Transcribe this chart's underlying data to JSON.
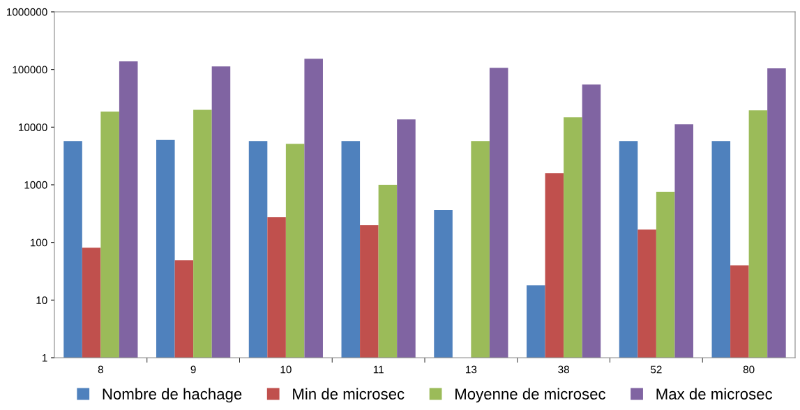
{
  "chart_data": {
    "type": "bar",
    "log": "y",
    "categories": [
      "8",
      "9",
      "10",
      "11",
      "13",
      "38",
      "52",
      "80"
    ],
    "series": [
      {
        "name": "Nombre de hachage",
        "color": "#4f81bd",
        "values": [
          5750,
          6000,
          5750,
          5750,
          366,
          18,
          5750,
          5750
        ]
      },
      {
        "name": "Min de microsec",
        "color": "#c0504d",
        "values": [
          81,
          49,
          276,
          199,
          null,
          1600,
          167,
          40
        ]
      },
      {
        "name": "Moyenne de microsec",
        "color": "#9bbb59",
        "values": [
          18600,
          20000,
          5150,
          1000,
          5750,
          14800,
          755,
          19500
        ]
      },
      {
        "name": "Max de microsec",
        "color": "#8064a2",
        "values": [
          138000,
          113000,
          154000,
          13600,
          107000,
          55000,
          11200,
          105000
        ]
      }
    ],
    "ylim": [
      1,
      1000000
    ],
    "yticks": [
      1,
      10,
      100,
      1000,
      10000,
      100000,
      1000000
    ],
    "grid": false,
    "legend": "bottom"
  }
}
